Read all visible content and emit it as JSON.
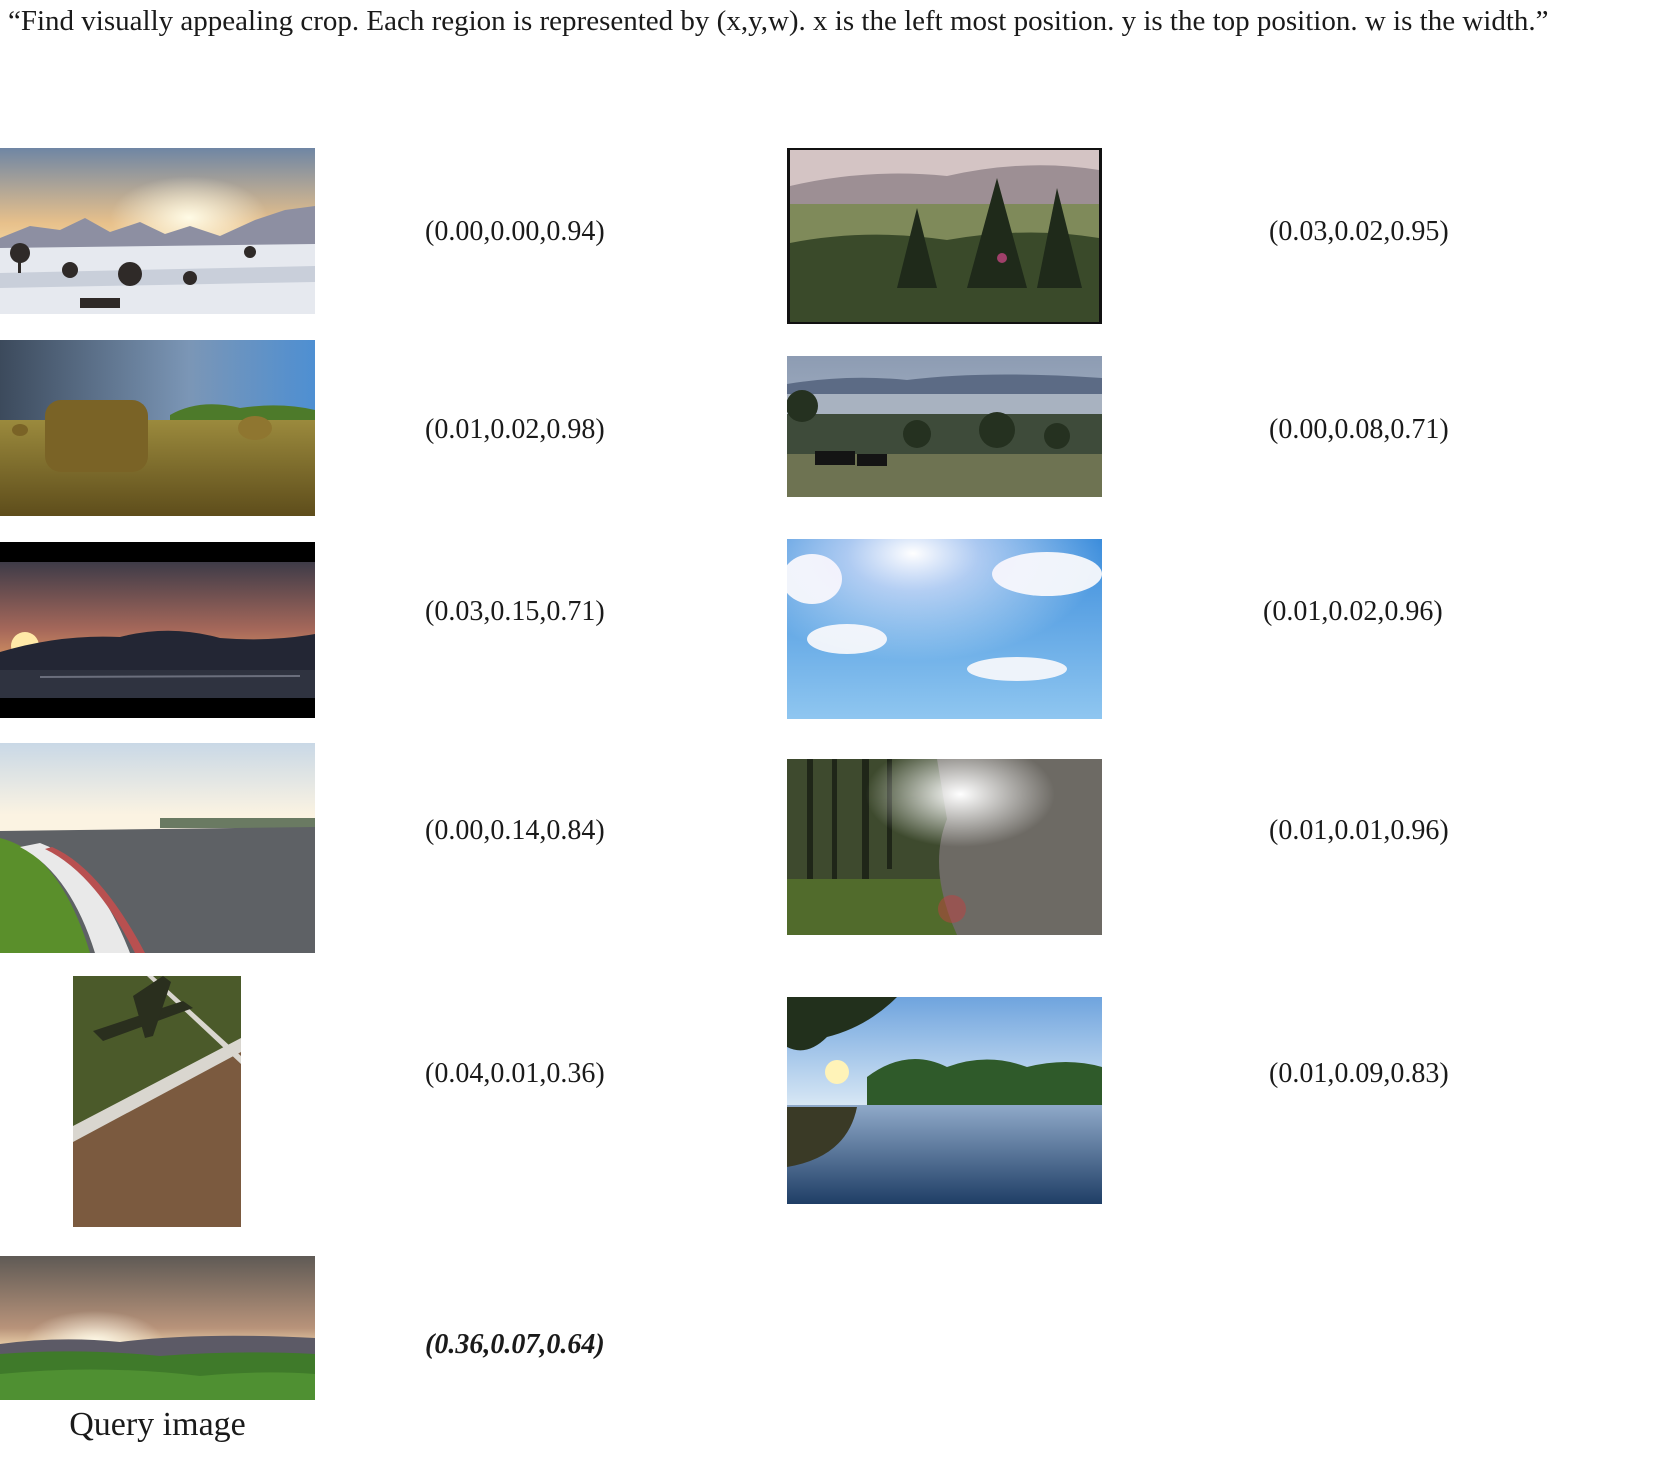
{
  "prompt": "“Find visually appealing crop. Each region is represented by (x,y,w). x is the left most position. y is the top position. w is the width.”",
  "left_column": [
    {
      "coords": "(0.00,0.00,0.94)"
    },
    {
      "coords": "(0.01,0.02,0.98)"
    },
    {
      "coords": "(0.03,0.15,0.71)"
    },
    {
      "coords": "(0.00,0.14,0.84)"
    },
    {
      "coords": "(0.04,0.01,0.36)"
    }
  ],
  "right_column": [
    {
      "coords": "(0.03,0.02,0.95)"
    },
    {
      "coords": "(0.00,0.08,0.71)"
    },
    {
      "coords": "(0.01,0.02,0.96)"
    },
    {
      "coords": "(0.01,0.01,0.96)"
    },
    {
      "coords": "(0.01,0.09,0.83)"
    }
  ],
  "query": {
    "coords": "(0.36,0.07,0.64)",
    "caption": "Query image"
  }
}
